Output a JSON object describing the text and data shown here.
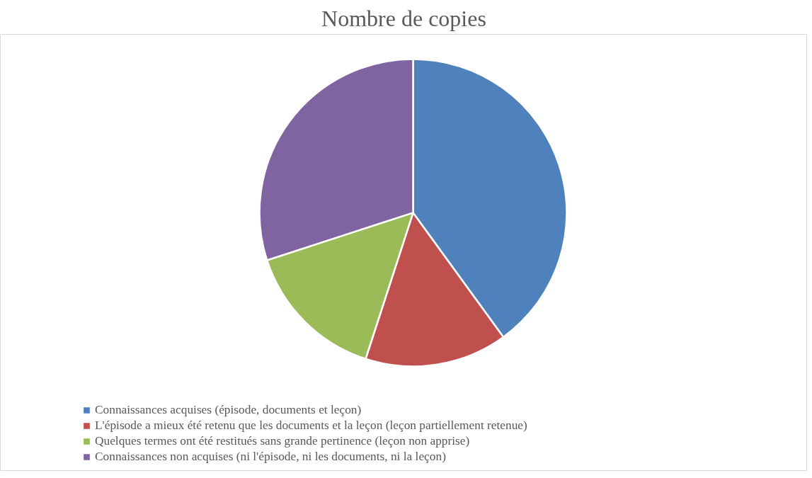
{
  "chart_data": {
    "type": "pie",
    "title": "Nombre de copies",
    "categories": [
      "Connaissances acquises (épisode, documents et leçon)",
      "L'épisode a mieux été retenu que les documents et la leçon (leçon partiellement retenue)",
      "Quelques termes ont été restitués sans grande pertinence (leçon non apprise)",
      "Connaissances non acquises (ni l'épisode, ni les documents, ni la leçon)"
    ],
    "values": [
      40,
      15,
      15,
      30
    ],
    "colors": [
      "#4f81bd",
      "#c0504d",
      "#9bbb59",
      "#8064a2"
    ],
    "legend": "bottom"
  }
}
